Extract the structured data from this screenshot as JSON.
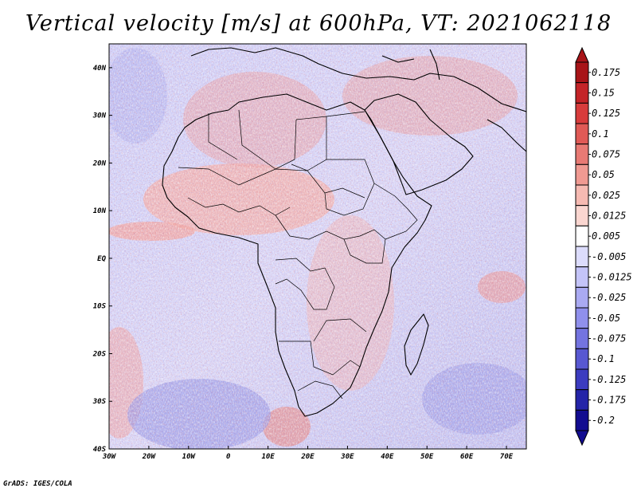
{
  "title": "Vertical velocity [m/s] at 600hPa, VT: 2021062118",
  "credit": "GrADS: IGES/COLA",
  "map": {
    "lon_range": [
      -30,
      75
    ],
    "lat_range": [
      -40,
      45
    ],
    "x_ticks": [
      "30W",
      "20W",
      "10W",
      "0",
      "10E",
      "20E",
      "30E",
      "40E",
      "50E",
      "60E",
      "70E"
    ],
    "y_ticks": [
      "40N",
      "30N",
      "20N",
      "10N",
      "EQ",
      "10S",
      "20S",
      "30S",
      "40S"
    ],
    "coastline_color": "#000000",
    "land_dominant_sign": "positive",
    "ocean_dominant_sign": "negative"
  },
  "colorbar": {
    "labels": [
      "0.175",
      "0.15",
      "0.125",
      "0.1",
      "0.075",
      "0.05",
      "0.025",
      "0.0125",
      "0.005",
      "-0.005",
      "-0.0125",
      "-0.025",
      "-0.05",
      "-0.075",
      "-0.1",
      "-0.125",
      "-0.175",
      "-0.2"
    ],
    "colors": [
      "#a81418",
      "#c42428",
      "#d83c3c",
      "#e05a56",
      "#e87a74",
      "#f09a92",
      "#f6bab2",
      "#fad6d0",
      "#ffffff",
      "#dcdcfc",
      "#c4c4f8",
      "#aaaaf2",
      "#9090ec",
      "#7474e0",
      "#5858d2",
      "#3c3cc0",
      "#2424a8",
      "#120c90"
    ]
  }
}
